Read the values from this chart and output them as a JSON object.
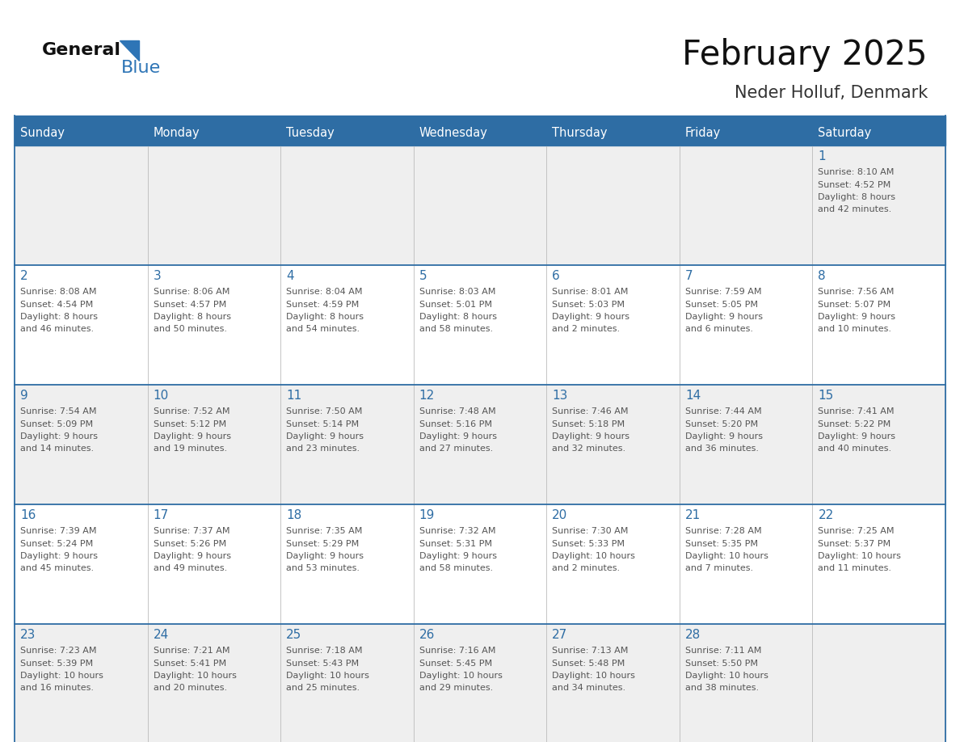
{
  "title": "February 2025",
  "subtitle": "Neder Holluf, Denmark",
  "days_of_week": [
    "Sunday",
    "Monday",
    "Tuesday",
    "Wednesday",
    "Thursday",
    "Friday",
    "Saturday"
  ],
  "header_bg": "#2E6DA4",
  "header_text": "#FFFFFF",
  "cell_bg_odd": "#EFEFEF",
  "cell_bg_even": "#FFFFFF",
  "border_color": "#2E6DA4",
  "day_number_color": "#2E6DA4",
  "cell_text_color": "#555555",
  "title_color": "#111111",
  "subtitle_color": "#333333",
  "logo_general_color": "#111111",
  "logo_blue_color": "#2E75B6",
  "weeks": [
    [
      {
        "day": "",
        "info": ""
      },
      {
        "day": "",
        "info": ""
      },
      {
        "day": "",
        "info": ""
      },
      {
        "day": "",
        "info": ""
      },
      {
        "day": "",
        "info": ""
      },
      {
        "day": "",
        "info": ""
      },
      {
        "day": "1",
        "info": "Sunrise: 8:10 AM\nSunset: 4:52 PM\nDaylight: 8 hours\nand 42 minutes."
      }
    ],
    [
      {
        "day": "2",
        "info": "Sunrise: 8:08 AM\nSunset: 4:54 PM\nDaylight: 8 hours\nand 46 minutes."
      },
      {
        "day": "3",
        "info": "Sunrise: 8:06 AM\nSunset: 4:57 PM\nDaylight: 8 hours\nand 50 minutes."
      },
      {
        "day": "4",
        "info": "Sunrise: 8:04 AM\nSunset: 4:59 PM\nDaylight: 8 hours\nand 54 minutes."
      },
      {
        "day": "5",
        "info": "Sunrise: 8:03 AM\nSunset: 5:01 PM\nDaylight: 8 hours\nand 58 minutes."
      },
      {
        "day": "6",
        "info": "Sunrise: 8:01 AM\nSunset: 5:03 PM\nDaylight: 9 hours\nand 2 minutes."
      },
      {
        "day": "7",
        "info": "Sunrise: 7:59 AM\nSunset: 5:05 PM\nDaylight: 9 hours\nand 6 minutes."
      },
      {
        "day": "8",
        "info": "Sunrise: 7:56 AM\nSunset: 5:07 PM\nDaylight: 9 hours\nand 10 minutes."
      }
    ],
    [
      {
        "day": "9",
        "info": "Sunrise: 7:54 AM\nSunset: 5:09 PM\nDaylight: 9 hours\nand 14 minutes."
      },
      {
        "day": "10",
        "info": "Sunrise: 7:52 AM\nSunset: 5:12 PM\nDaylight: 9 hours\nand 19 minutes."
      },
      {
        "day": "11",
        "info": "Sunrise: 7:50 AM\nSunset: 5:14 PM\nDaylight: 9 hours\nand 23 minutes."
      },
      {
        "day": "12",
        "info": "Sunrise: 7:48 AM\nSunset: 5:16 PM\nDaylight: 9 hours\nand 27 minutes."
      },
      {
        "day": "13",
        "info": "Sunrise: 7:46 AM\nSunset: 5:18 PM\nDaylight: 9 hours\nand 32 minutes."
      },
      {
        "day": "14",
        "info": "Sunrise: 7:44 AM\nSunset: 5:20 PM\nDaylight: 9 hours\nand 36 minutes."
      },
      {
        "day": "15",
        "info": "Sunrise: 7:41 AM\nSunset: 5:22 PM\nDaylight: 9 hours\nand 40 minutes."
      }
    ],
    [
      {
        "day": "16",
        "info": "Sunrise: 7:39 AM\nSunset: 5:24 PM\nDaylight: 9 hours\nand 45 minutes."
      },
      {
        "day": "17",
        "info": "Sunrise: 7:37 AM\nSunset: 5:26 PM\nDaylight: 9 hours\nand 49 minutes."
      },
      {
        "day": "18",
        "info": "Sunrise: 7:35 AM\nSunset: 5:29 PM\nDaylight: 9 hours\nand 53 minutes."
      },
      {
        "day": "19",
        "info": "Sunrise: 7:32 AM\nSunset: 5:31 PM\nDaylight: 9 hours\nand 58 minutes."
      },
      {
        "day": "20",
        "info": "Sunrise: 7:30 AM\nSunset: 5:33 PM\nDaylight: 10 hours\nand 2 minutes."
      },
      {
        "day": "21",
        "info": "Sunrise: 7:28 AM\nSunset: 5:35 PM\nDaylight: 10 hours\nand 7 minutes."
      },
      {
        "day": "22",
        "info": "Sunrise: 7:25 AM\nSunset: 5:37 PM\nDaylight: 10 hours\nand 11 minutes."
      }
    ],
    [
      {
        "day": "23",
        "info": "Sunrise: 7:23 AM\nSunset: 5:39 PM\nDaylight: 10 hours\nand 16 minutes."
      },
      {
        "day": "24",
        "info": "Sunrise: 7:21 AM\nSunset: 5:41 PM\nDaylight: 10 hours\nand 20 minutes."
      },
      {
        "day": "25",
        "info": "Sunrise: 7:18 AM\nSunset: 5:43 PM\nDaylight: 10 hours\nand 25 minutes."
      },
      {
        "day": "26",
        "info": "Sunrise: 7:16 AM\nSunset: 5:45 PM\nDaylight: 10 hours\nand 29 minutes."
      },
      {
        "day": "27",
        "info": "Sunrise: 7:13 AM\nSunset: 5:48 PM\nDaylight: 10 hours\nand 34 minutes."
      },
      {
        "day": "28",
        "info": "Sunrise: 7:11 AM\nSunset: 5:50 PM\nDaylight: 10 hours\nand 38 minutes."
      },
      {
        "day": "",
        "info": ""
      }
    ]
  ]
}
